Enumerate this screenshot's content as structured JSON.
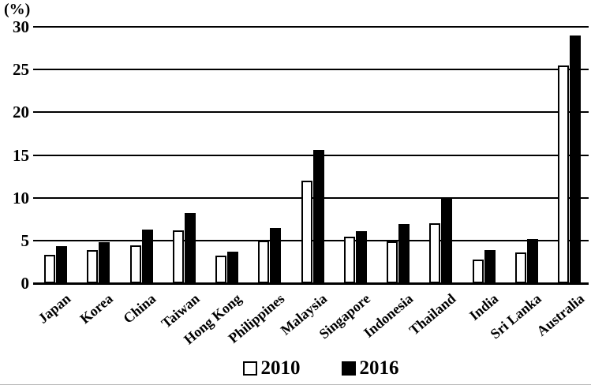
{
  "chart_data": {
    "type": "bar",
    "title": "",
    "xlabel": "",
    "ylabel": "(%)",
    "categories": [
      "Japan",
      "Korea",
      "China",
      "Taiwan",
      "Hong Kong",
      "Philippines",
      "Malaysia",
      "Singapore",
      "Indonesia",
      "Thailand",
      "India",
      "Sri Lanka",
      "Australia"
    ],
    "series": [
      {
        "name": "2010",
        "color": "#ffffff",
        "values": [
          3.3,
          3.9,
          4.4,
          6.2,
          3.2,
          5.0,
          12.0,
          5.4,
          4.9,
          7.0,
          2.8,
          3.6,
          25.5
        ]
      },
      {
        "name": "2016",
        "color": "#000000",
        "values": [
          4.3,
          4.8,
          6.3,
          8.2,
          3.7,
          6.5,
          15.6,
          6.1,
          6.9,
          10.0,
          3.9,
          5.2,
          29.0
        ]
      }
    ],
    "ylim": [
      0,
      30
    ],
    "ytick_interval": 5,
    "yticks": [
      "0",
      "5",
      "10",
      "15",
      "20",
      "25",
      "30"
    ],
    "grid": true,
    "legend_position": "bottom"
  },
  "colors": {
    "background": "#ffffff",
    "bar_2010_fill": "#ffffff",
    "bar_2016_fill": "#000000",
    "line_and_text": "#000000"
  }
}
